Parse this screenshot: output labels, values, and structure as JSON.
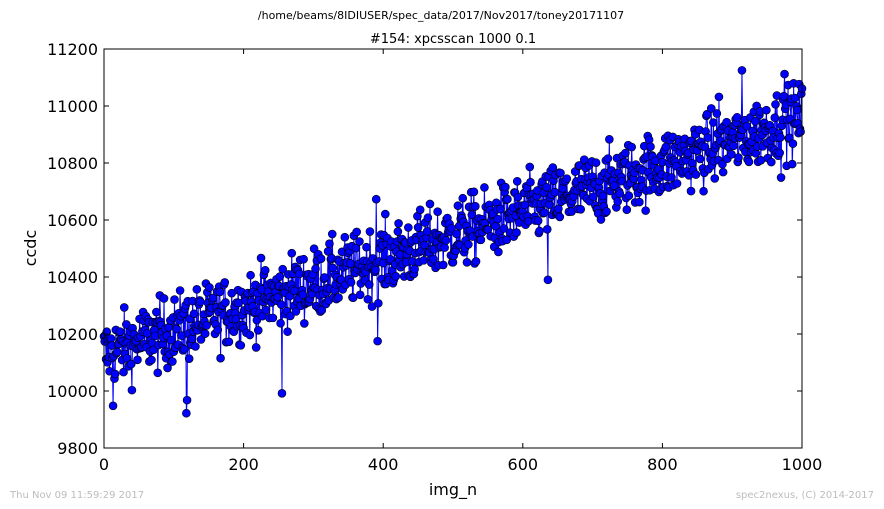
{
  "chart_data": {
    "type": "scatter",
    "suptitle": "/home/beams/8IDIUSER/spec_data/2017/Nov2017/toney20171107",
    "title": "#154: xpcsscan 1000 0.1",
    "xlabel": "img_n",
    "ylabel": "ccdc",
    "xlim": [
      0,
      1000
    ],
    "ylim": [
      9800,
      11200
    ],
    "xticks": [
      0,
      200,
      400,
      600,
      800,
      1000
    ],
    "yticks": [
      9800,
      10000,
      10200,
      10400,
      10600,
      10800,
      11000,
      11200
    ],
    "grid": false,
    "line_color": "#0000ff",
    "marker": "filled circle",
    "series": [
      {
        "trend": {
          "x": [
            0,
            1000
          ],
          "y": [
            10130,
            10960
          ]
        },
        "noise_amplitude": 110,
        "n_points": 1001,
        "notable_points": [
          {
            "x": 13,
            "y": 9948
          },
          {
            "x": 118,
            "y": 9922
          },
          {
            "x": 119,
            "y": 9968
          },
          {
            "x": 255,
            "y": 9992
          },
          {
            "x": 392,
            "y": 10175
          },
          {
            "x": 390,
            "y": 10673
          },
          {
            "x": 636,
            "y": 10390
          },
          {
            "x": 914,
            "y": 11125
          },
          {
            "x": 975,
            "y": 11112
          },
          {
            "x": 970,
            "y": 10749
          },
          {
            "x": 881,
            "y": 11032
          }
        ]
      }
    ]
  },
  "footer": {
    "timestamp": "Thu Nov 09 11:59:29 2017",
    "credit": "spec2nexus, (C) 2014-2017"
  }
}
